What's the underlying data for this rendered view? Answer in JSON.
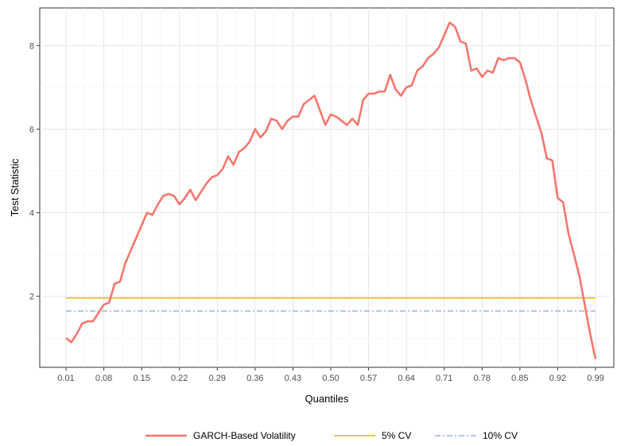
{
  "chart_data": {
    "type": "line",
    "title": "",
    "xlabel": "Quantiles",
    "ylabel": "Test Statistic",
    "x_tick_labels": [
      "0.01",
      "0.08",
      "0.15",
      "0.22",
      "0.29",
      "0.36",
      "0.43",
      "0.50",
      "0.57",
      "0.64",
      "0.71",
      "0.78",
      "0.85",
      "0.92",
      "0.99"
    ],
    "y_ticks": [
      2,
      4,
      6,
      8
    ],
    "xlim": [
      0.01,
      0.99
    ],
    "ylim": [
      0.3,
      8.9
    ],
    "grid": true,
    "legend_position": "bottom",
    "series": [
      {
        "name": "GARCH-Based Volatility",
        "color": "#F8766D",
        "style": "solid",
        "x": [
          0.01,
          0.02,
          0.03,
          0.04,
          0.05,
          0.06,
          0.07,
          0.08,
          0.09,
          0.1,
          0.11,
          0.12,
          0.13,
          0.14,
          0.15,
          0.16,
          0.17,
          0.18,
          0.19,
          0.2,
          0.21,
          0.22,
          0.23,
          0.24,
          0.25,
          0.26,
          0.27,
          0.28,
          0.29,
          0.3,
          0.31,
          0.32,
          0.33,
          0.34,
          0.35,
          0.36,
          0.37,
          0.38,
          0.39,
          0.4,
          0.41,
          0.42,
          0.43,
          0.44,
          0.45,
          0.46,
          0.47,
          0.48,
          0.49,
          0.5,
          0.51,
          0.52,
          0.53,
          0.54,
          0.55,
          0.56,
          0.57,
          0.58,
          0.59,
          0.6,
          0.61,
          0.62,
          0.63,
          0.64,
          0.65,
          0.66,
          0.67,
          0.68,
          0.69,
          0.7,
          0.71,
          0.72,
          0.73,
          0.74,
          0.75,
          0.76,
          0.77,
          0.78,
          0.79,
          0.8,
          0.81,
          0.82,
          0.83,
          0.84,
          0.85,
          0.86,
          0.87,
          0.88,
          0.89,
          0.9,
          0.91,
          0.92,
          0.93,
          0.94,
          0.95,
          0.96,
          0.97,
          0.98,
          0.99
        ],
        "y": [
          1.0,
          0.9,
          1.1,
          1.35,
          1.4,
          1.4,
          1.6,
          1.8,
          1.85,
          2.3,
          2.35,
          2.8,
          3.1,
          3.4,
          3.7,
          4.0,
          3.95,
          4.2,
          4.4,
          4.45,
          4.4,
          4.2,
          4.35,
          4.55,
          4.3,
          4.5,
          4.7,
          4.85,
          4.9,
          5.05,
          5.35,
          5.15,
          5.45,
          5.55,
          5.7,
          6.0,
          5.8,
          5.95,
          6.25,
          6.2,
          6.0,
          6.2,
          6.3,
          6.3,
          6.6,
          6.7,
          6.8,
          6.45,
          6.1,
          6.35,
          6.3,
          6.2,
          6.1,
          6.25,
          6.1,
          6.7,
          6.85,
          6.85,
          6.9,
          6.9,
          7.3,
          6.95,
          6.8,
          7.0,
          7.05,
          7.4,
          7.5,
          7.7,
          7.8,
          7.95,
          8.25,
          8.55,
          8.45,
          8.1,
          8.05,
          7.4,
          7.45,
          7.25,
          7.4,
          7.35,
          7.7,
          7.65,
          7.7,
          7.7,
          7.6,
          7.2,
          6.7,
          6.3,
          5.9,
          5.3,
          5.25,
          4.35,
          4.25,
          3.5,
          3.0,
          2.5,
          1.8,
          1.1,
          0.5
        ]
      },
      {
        "name": "5% CV",
        "color": "#E7B800",
        "style": "solid",
        "x": [
          0.01,
          0.99
        ],
        "y": [
          1.96,
          1.96
        ]
      },
      {
        "name": "10% CV",
        "color": "#9DB4E0",
        "style": "dashdot",
        "x": [
          0.01,
          0.99
        ],
        "y": [
          1.645,
          1.645
        ]
      }
    ]
  }
}
